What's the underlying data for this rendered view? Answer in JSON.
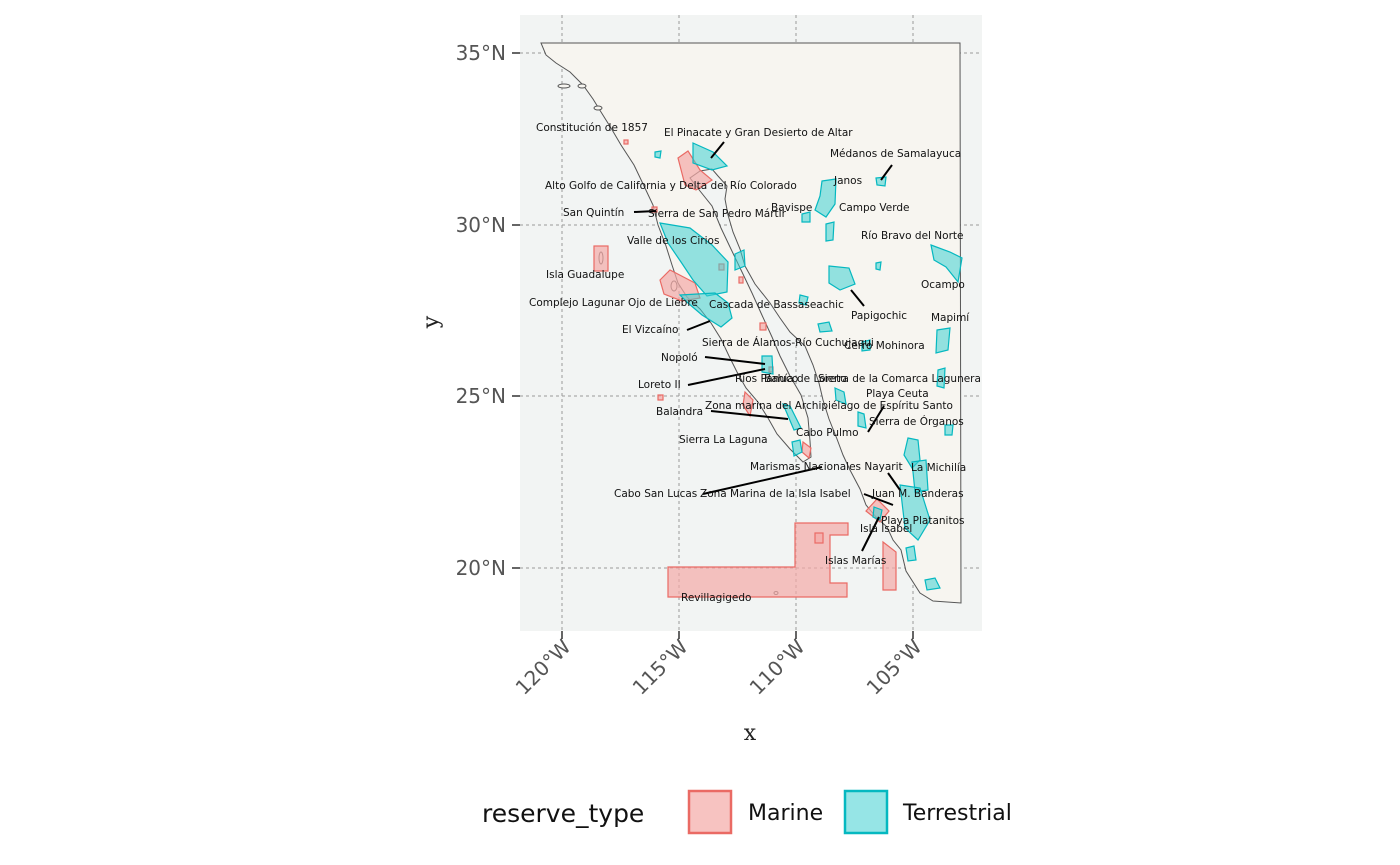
{
  "axes": {
    "xlabel": "x",
    "ylabel": "y",
    "x_ticks": [
      "120°W",
      "115°W",
      "110°W",
      "105°W"
    ],
    "y_ticks": [
      "35°N",
      "30°N",
      "25°N",
      "20°N"
    ]
  },
  "legend": {
    "title": "reserve_type",
    "items": [
      {
        "label": "Marine",
        "fill": "#f4a9a6",
        "stroke": "#ea6a64"
      },
      {
        "label": "Terrestrial",
        "fill": "#40cfd2",
        "stroke": "#05b8c0"
      }
    ]
  },
  "colors": {
    "panel_background": "#f2f4f3",
    "land": "#f7f5f0",
    "marine": "#f4a9a6",
    "terrestrial": "#40cfd2"
  },
  "chart_data": {
    "type": "map",
    "xlim": [
      -122,
      -102
    ],
    "ylim": [
      18,
      36
    ],
    "grid": true,
    "legend_position": "bottom",
    "reserves": [
      {
        "name": "Constitución de 1857",
        "type": "Marine",
        "lon": -117.1,
        "lat": 32.1
      },
      {
        "name": "El Pinacate y Gran Desierto de Altar",
        "type": "Terrestrial",
        "lon": -113.3,
        "lat": 31.8
      },
      {
        "name": "Médanos de Samalayuca",
        "type": "Terrestrial",
        "lon": -106.4,
        "lat": 31.3
      },
      {
        "name": "Alto Golfo de California y Delta del Río Colorado",
        "type": "Marine",
        "lon": -114.6,
        "lat": 31.5
      },
      {
        "name": "Janos",
        "type": "Terrestrial",
        "lon": -108.6,
        "lat": 30.9
      },
      {
        "name": "San Quintín",
        "type": "Marine",
        "lon": -116.0,
        "lat": 30.5
      },
      {
        "name": "Sierra de San Pedro Mártir",
        "type": "Terrestrial",
        "lon": -115.5,
        "lat": 30.8
      },
      {
        "name": "Bavispe",
        "type": "Terrestrial",
        "lon": -109.1,
        "lat": 30.3
      },
      {
        "name": "Campo Verde",
        "type": "Terrestrial",
        "lon": -107.6,
        "lat": 30.1
      },
      {
        "name": "Valle de los Cirios",
        "type": "Terrestrial",
        "lon": -113.7,
        "lat": 29.2
      },
      {
        "name": "Río Bravo del Norte",
        "type": "Terrestrial",
        "lon": -104.4,
        "lat": 29.5
      },
      {
        "name": "Isla Guadalupe",
        "type": "Marine",
        "lon": -118.3,
        "lat": 29.0
      },
      {
        "name": "Ocampo",
        "type": "Terrestrial",
        "lon": -102.4,
        "lat": 28.6
      },
      {
        "name": "Complejo Lagunar Ojo de Liebre",
        "type": "Marine",
        "lon": -114.0,
        "lat": 28.0
      },
      {
        "name": "Cascada de Bassaseachic",
        "type": "Terrestrial",
        "lon": -108.2,
        "lat": 28.2
      },
      {
        "name": "Papigochic",
        "type": "Terrestrial",
        "lon": -108.1,
        "lat": 28.1
      },
      {
        "name": "Mapimí",
        "type": "Terrestrial",
        "lon": -103.7,
        "lat": 26.7
      },
      {
        "name": "El Vizcaíno",
        "type": "Terrestrial",
        "lon": -113.4,
        "lat": 27.5
      },
      {
        "name": "Sierra de Álamos-Río Cuchujaqui",
        "type": "Terrestrial",
        "lon": -108.9,
        "lat": 27.0
      },
      {
        "name": "Cerro Mohinora",
        "type": "Terrestrial",
        "lon": -107.0,
        "lat": 25.9
      },
      {
        "name": "Nopoló",
        "type": "Marine",
        "lon": -111.3,
        "lat": 26.0
      },
      {
        "name": "Loreto II",
        "type": "Marine",
        "lon": -111.2,
        "lat": 25.8
      },
      {
        "name": "Ríos Pánuco",
        "type": "Terrestrial",
        "lon": -110.1,
        "lat": 25.5
      },
      {
        "name": "Bahía de Loreto",
        "type": "Marine",
        "lon": -111.0,
        "lat": 25.9
      },
      {
        "name": "Sierra de la Comarca Lagunera",
        "type": "Terrestrial",
        "lon": -103.4,
        "lat": 25.6
      },
      {
        "name": "Playa Ceuta",
        "type": "Marine",
        "lon": -107.0,
        "lat": 24.0
      },
      {
        "name": "Balandra",
        "type": "Marine",
        "lon": -110.3,
        "lat": 24.3
      },
      {
        "name": "Zona marina del Archipiélago de Espíritu Santo",
        "type": "Marine",
        "lon": -110.2,
        "lat": 24.5
      },
      {
        "name": "Sierra de Órganos",
        "type": "Terrestrial",
        "lon": -103.8,
        "lat": 23.8
      },
      {
        "name": "Cabo Pulmo",
        "type": "Marine",
        "lon": -109.4,
        "lat": 23.4
      },
      {
        "name": "Sierra La Laguna",
        "type": "Terrestrial",
        "lon": -110.0,
        "lat": 23.5
      },
      {
        "name": "Marismas Nacionales Nayarit",
        "type": "Marine",
        "lon": -105.6,
        "lat": 22.3
      },
      {
        "name": "La Michilía",
        "type": "Terrestrial",
        "lon": -104.1,
        "lat": 23.5
      },
      {
        "name": "Cabo San Lucas",
        "type": "Marine",
        "lon": -109.9,
        "lat": 22.9
      },
      {
        "name": "Zona Marina de la Isla Isabel",
        "type": "Marine",
        "lon": -105.8,
        "lat": 21.8
      },
      {
        "name": "Juan M. Banderas",
        "type": "Terrestrial",
        "lon": -103.1,
        "lat": 22.5
      },
      {
        "name": "Playa Platanitos",
        "type": "Marine",
        "lon": -105.5,
        "lat": 21.4
      },
      {
        "name": "Isla Isabel",
        "type": "Marine",
        "lon": -105.9,
        "lat": 21.8
      },
      {
        "name": "Islas Marías",
        "type": "Marine",
        "lon": -106.5,
        "lat": 21.5
      },
      {
        "name": "Revillagigedo",
        "type": "Marine",
        "lon": -111.0,
        "lat": 18.9
      }
    ]
  }
}
